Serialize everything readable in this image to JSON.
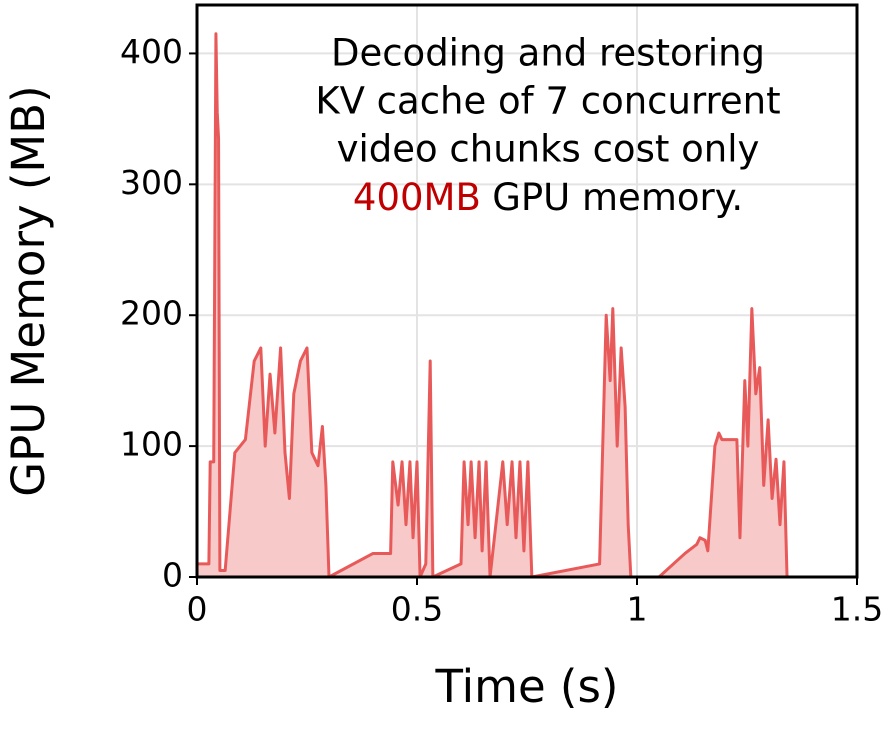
{
  "chart_data": {
    "type": "area",
    "xlabel": "Time (s)",
    "ylabel": "GPU Memory (MB)",
    "annotation": {
      "lines": [
        "Decoding and restoring",
        "KV cache of 7 concurrent",
        "video chunks cost only"
      ],
      "highlight": "400MB",
      "highlight_color": "#c00000",
      "tail": "GPU memory."
    },
    "xlim": [
      0,
      1.5
    ],
    "xticks": [
      0,
      0.5,
      1,
      1.5
    ],
    "ylim": [
      0,
      437
    ],
    "yticks": [
      0,
      100,
      200,
      300,
      400
    ],
    "grid": true,
    "series": [
      {
        "color": "#e85a5a",
        "fill": "#f7c9c9",
        "x": [
          0,
          0.027,
          0.03,
          0.038,
          0.043,
          0.046,
          0.049,
          0.052,
          0.064,
          0.086,
          0.11,
          0.13,
          0.145,
          0.155,
          0.166,
          0.177,
          0.19,
          0.2,
          0.21,
          0.22,
          0.235,
          0.25,
          0.261,
          0.275,
          0.285,
          0.293,
          0.3,
          0.4,
          0.44,
          0.445,
          0.457,
          0.466,
          0.475,
          0.484,
          0.491,
          0.5,
          0.507,
          0.52,
          0.53,
          0.536,
          0.6,
          0.607,
          0.616,
          0.623,
          0.632,
          0.641,
          0.648,
          0.657,
          0.666,
          0.695,
          0.705,
          0.716,
          0.725,
          0.734,
          0.743,
          0.752,
          0.761,
          0.915,
          0.93,
          0.939,
          0.945,
          0.955,
          0.964,
          0.973,
          0.98,
          0.986,
          1.05,
          1.109,
          1.136,
          1.143,
          1.155,
          1.161,
          1.177,
          1.186,
          1.193,
          1.227,
          1.234,
          1.245,
          1.252,
          1.261,
          1.27,
          1.279,
          1.288,
          1.298,
          1.307,
          1.316,
          1.325,
          1.334,
          1.341,
          1.416
        ],
        "values": [
          10,
          10,
          88,
          88,
          415,
          355,
          335,
          5,
          5,
          95,
          105,
          165,
          175,
          100,
          155,
          110,
          175,
          95,
          60,
          140,
          165,
          175,
          95,
          85,
          115,
          70,
          0,
          18,
          18,
          88,
          55,
          88,
          40,
          88,
          30,
          88,
          0,
          10,
          165,
          0,
          10,
          88,
          40,
          88,
          30,
          88,
          20,
          88,
          0,
          88,
          40,
          88,
          30,
          88,
          20,
          88,
          0,
          10,
          200,
          150,
          205,
          100,
          175,
          130,
          40,
          0,
          0,
          18,
          25,
          30,
          28,
          20,
          100,
          110,
          105,
          105,
          30,
          150,
          100,
          205,
          140,
          160,
          70,
          120,
          60,
          90,
          40,
          88,
          0,
          0
        ]
      }
    ]
  }
}
